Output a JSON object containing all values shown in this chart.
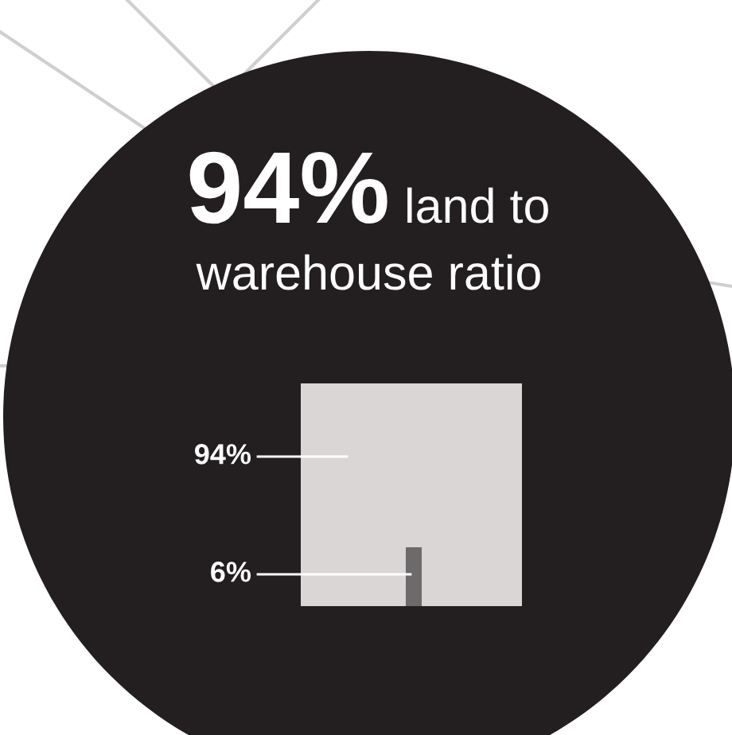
{
  "chart_data": {
    "type": "other",
    "title": "94%",
    "subtitle": "land to warehouse ratio",
    "categories": [
      null,
      null
    ],
    "values": [
      94,
      6
    ],
    "value_labels": [
      "94%",
      "6%"
    ],
    "colors": [
      "#dad6d6",
      "#6d6a6b"
    ]
  }
}
